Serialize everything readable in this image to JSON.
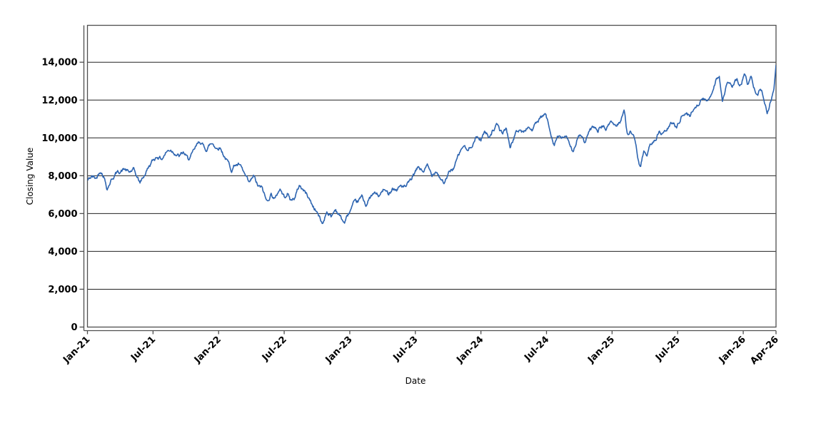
{
  "page": {
    "background": "#ffffff"
  },
  "chart_data": {
    "type": "line",
    "title": "",
    "xlabel": "Date",
    "ylabel": "Closing Value",
    "legend": "none",
    "grid": "horizontal-only",
    "line_color": "#2d64b0",
    "grid_color": "#222222",
    "axis_color": "#4f4f4f",
    "text_color": "#000000",
    "y_ticks": [
      0,
      2000,
      4000,
      6000,
      8000,
      10000,
      12000,
      14000
    ],
    "ylim": [
      0,
      15950
    ],
    "xlim_months": [
      0,
      63
    ],
    "x_ticks": [
      {
        "month": 0,
        "label": "Jan-21"
      },
      {
        "month": 6,
        "label": "Jul-21"
      },
      {
        "month": 12,
        "label": "Jan-22"
      },
      {
        "month": 18,
        "label": "Jul-22"
      },
      {
        "month": 24,
        "label": "Jan-23"
      },
      {
        "month": 30,
        "label": "Jul-23"
      },
      {
        "month": 36,
        "label": "Jan-24"
      },
      {
        "month": 42,
        "label": "Jul-24"
      },
      {
        "month": 48,
        "label": "Jan-25"
      },
      {
        "month": 54,
        "label": "Jul-25"
      },
      {
        "month": 60,
        "label": "Jan-26"
      },
      {
        "month": 63,
        "label": "Apr-26"
      }
    ],
    "series": [
      {
        "name": "Closing Value",
        "keypoints_month_value": [
          [
            0,
            7750
          ],
          [
            0.4,
            7950
          ],
          [
            0.8,
            7850
          ],
          [
            1.2,
            8330
          ],
          [
            1.5,
            8000
          ],
          [
            1.8,
            7350
          ],
          [
            2.2,
            7820
          ],
          [
            2.6,
            8120
          ],
          [
            3,
            8250
          ],
          [
            3.4,
            8350
          ],
          [
            3.8,
            8150
          ],
          [
            4.2,
            8300
          ],
          [
            4.8,
            7620
          ],
          [
            5.2,
            8020
          ],
          [
            5.6,
            8480
          ],
          [
            6,
            8800
          ],
          [
            6.4,
            9050
          ],
          [
            6.8,
            8900
          ],
          [
            7.2,
            9250
          ],
          [
            7.6,
            9400
          ],
          [
            8,
            9250
          ],
          [
            8.4,
            9020
          ],
          [
            8.8,
            9200
          ],
          [
            9.2,
            8850
          ],
          [
            9.6,
            9120
          ],
          [
            10,
            9550
          ],
          [
            10.3,
            9820
          ],
          [
            10.6,
            9560
          ],
          [
            10.9,
            9400
          ],
          [
            11.2,
            9650
          ],
          [
            11.5,
            9720
          ],
          [
            11.8,
            9460
          ],
          [
            12.1,
            9560
          ],
          [
            12.4,
            9200
          ],
          [
            12.8,
            8760
          ],
          [
            13.2,
            8320
          ],
          [
            13.5,
            8620
          ],
          [
            13.9,
            8560
          ],
          [
            14.3,
            8120
          ],
          [
            14.8,
            7520
          ],
          [
            15.2,
            7950
          ],
          [
            15.6,
            7420
          ],
          [
            16,
            7300
          ],
          [
            16.4,
            6620
          ],
          [
            16.8,
            7050
          ],
          [
            17.2,
            6780
          ],
          [
            17.6,
            7350
          ],
          [
            18,
            6880
          ],
          [
            18.3,
            7120
          ],
          [
            18.6,
            6680
          ],
          [
            19,
            6880
          ],
          [
            19.4,
            7500
          ],
          [
            19.8,
            7220
          ],
          [
            20.2,
            6900
          ],
          [
            20.6,
            6420
          ],
          [
            21,
            6100
          ],
          [
            21.5,
            5420
          ],
          [
            21.9,
            6150
          ],
          [
            22.3,
            5820
          ],
          [
            22.7,
            6250
          ],
          [
            23.1,
            5870
          ],
          [
            23.5,
            5500
          ],
          [
            23.9,
            5980
          ],
          [
            24.3,
            6420
          ],
          [
            24.7,
            6560
          ],
          [
            25.1,
            6860
          ],
          [
            25.5,
            6480
          ],
          [
            25.9,
            6860
          ],
          [
            26.3,
            7060
          ],
          [
            26.7,
            6900
          ],
          [
            27.1,
            7260
          ],
          [
            27.5,
            7020
          ],
          [
            27.9,
            7400
          ],
          [
            28.3,
            7260
          ],
          [
            28.7,
            7500
          ],
          [
            29.1,
            7360
          ],
          [
            29.5,
            7650
          ],
          [
            29.9,
            8060
          ],
          [
            30.3,
            8450
          ],
          [
            30.7,
            8220
          ],
          [
            31.1,
            8500
          ],
          [
            31.5,
            8020
          ],
          [
            31.9,
            8350
          ],
          [
            32.3,
            7900
          ],
          [
            32.7,
            7620
          ],
          [
            33.1,
            8160
          ],
          [
            33.5,
            8420
          ],
          [
            34,
            9100
          ],
          [
            34.4,
            9600
          ],
          [
            34.8,
            9250
          ],
          [
            35.2,
            9700
          ],
          [
            35.6,
            10050
          ],
          [
            36,
            9920
          ],
          [
            36.3,
            10350
          ],
          [
            36.7,
            10080
          ],
          [
            37.1,
            10450
          ],
          [
            37.5,
            10650
          ],
          [
            37.9,
            10220
          ],
          [
            38.3,
            10500
          ],
          [
            38.7,
            9500
          ],
          [
            39.1,
            10150
          ],
          [
            39.5,
            10450
          ],
          [
            39.9,
            10260
          ],
          [
            40.3,
            10600
          ],
          [
            40.7,
            10420
          ],
          [
            41.1,
            10800
          ],
          [
            41.5,
            11000
          ],
          [
            41.9,
            11250
          ],
          [
            42.3,
            10450
          ],
          [
            42.7,
            9720
          ],
          [
            43,
            10100
          ],
          [
            43.4,
            9920
          ],
          [
            43.8,
            10150
          ],
          [
            44.1,
            9520
          ],
          [
            44.4,
            9300
          ],
          [
            44.8,
            9950
          ],
          [
            45.2,
            10150
          ],
          [
            45.5,
            9680
          ],
          [
            45.9,
            10250
          ],
          [
            46.3,
            10550
          ],
          [
            46.7,
            10360
          ],
          [
            47.1,
            10650
          ],
          [
            47.5,
            10460
          ],
          [
            47.9,
            10900
          ],
          [
            48.3,
            10620
          ],
          [
            48.7,
            10860
          ],
          [
            49.1,
            11500
          ],
          [
            49.4,
            10120
          ],
          [
            49.7,
            10420
          ],
          [
            50,
            10000
          ],
          [
            50.3,
            9100
          ],
          [
            50.6,
            8300
          ],
          [
            50.9,
            9320
          ],
          [
            51.2,
            8820
          ],
          [
            51.5,
            9600
          ],
          [
            51.9,
            9900
          ],
          [
            52.3,
            10300
          ],
          [
            52.7,
            10160
          ],
          [
            53.1,
            10500
          ],
          [
            53.5,
            10760
          ],
          [
            53.9,
            10620
          ],
          [
            54.3,
            11120
          ],
          [
            54.7,
            11320
          ],
          [
            55.1,
            11160
          ],
          [
            55.5,
            11600
          ],
          [
            55.9,
            11860
          ],
          [
            56.3,
            12060
          ],
          [
            56.7,
            11900
          ],
          [
            57.1,
            12400
          ],
          [
            57.5,
            13100
          ],
          [
            57.8,
            13350
          ],
          [
            58.1,
            11900
          ],
          [
            58.4,
            12560
          ],
          [
            58.7,
            12950
          ],
          [
            59,
            12660
          ],
          [
            59.4,
            13060
          ],
          [
            59.8,
            12760
          ],
          [
            60.1,
            13400
          ],
          [
            60.4,
            12860
          ],
          [
            60.7,
            13200
          ],
          [
            61,
            12720
          ],
          [
            61.3,
            12400
          ],
          [
            61.6,
            12620
          ],
          [
            61.9,
            12160
          ],
          [
            62.2,
            11350
          ],
          [
            62.5,
            11960
          ],
          [
            62.8,
            12520
          ],
          [
            63,
            13850
          ]
        ]
      }
    ],
    "noise": {
      "seed": 42,
      "samples_per_month": 21,
      "amplitude": 80,
      "persistence": 0.8
    }
  }
}
